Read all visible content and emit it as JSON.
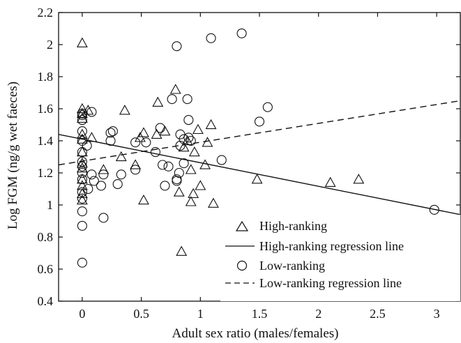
{
  "chart_data": {
    "type": "scatter",
    "xlabel": "Adult sex ratio (males/females)",
    "ylabel": "Log FGM (ng/g wet faeces)",
    "xlim": [
      -0.2,
      3.2
    ],
    "ylim": [
      0.4,
      2.2
    ],
    "xticks": [
      "0",
      "0.5",
      "1",
      "1.5",
      "2",
      "2.5",
      "3"
    ],
    "xtick_values": [
      0,
      0.5,
      1,
      1.5,
      2,
      2.5,
      3
    ],
    "yticks": [
      "0.4",
      "0.6",
      "0.8",
      "1",
      "1.2",
      "1.4",
      "1.6",
      "1.8",
      "2",
      "2.2"
    ],
    "ytick_values": [
      0.4,
      0.6,
      0.8,
      1.0,
      1.2,
      1.4,
      1.6,
      1.8,
      2.0,
      2.2
    ],
    "legend_position": "bottom-right",
    "series": [
      {
        "name": "High-ranking",
        "marker": "triangle",
        "points": [
          [
            0,
            2.01
          ],
          [
            0,
            1.6
          ],
          [
            0,
            1.57
          ],
          [
            0,
            1.54
          ],
          [
            0,
            1.44
          ],
          [
            0,
            1.41
          ],
          [
            0,
            1.33
          ],
          [
            0,
            1.26
          ],
          [
            0,
            1.23
          ],
          [
            0,
            1.16
          ],
          [
            0,
            1.12
          ],
          [
            0,
            1.07
          ],
          [
            0,
            1.03
          ],
          [
            0.05,
            1.59
          ],
          [
            0.08,
            1.42
          ],
          [
            0.18,
            1.22
          ],
          [
            0.33,
            1.3
          ],
          [
            0.36,
            1.59
          ],
          [
            0.45,
            1.25
          ],
          [
            0.49,
            1.42
          ],
          [
            0.52,
            1.45
          ],
          [
            0.52,
            1.03
          ],
          [
            0.63,
            1.44
          ],
          [
            0.64,
            1.64
          ],
          [
            0.7,
            1.46
          ],
          [
            0.79,
            1.72
          ],
          [
            0.82,
            1.08
          ],
          [
            0.84,
            0.71
          ],
          [
            0.86,
            1.36
          ],
          [
            0.89,
            1.4
          ],
          [
            0.92,
            1.22
          ],
          [
            0.94,
            1.07
          ],
          [
            0.92,
            1.02
          ],
          [
            0.95,
            1.33
          ],
          [
            0.98,
            1.47
          ],
          [
            1.0,
            1.12
          ],
          [
            1.04,
            1.25
          ],
          [
            1.06,
            1.39
          ],
          [
            1.09,
            1.5
          ],
          [
            1.11,
            1.01
          ],
          [
            1.48,
            1.16
          ],
          [
            2.1,
            1.14
          ],
          [
            2.34,
            1.16
          ]
        ]
      },
      {
        "name": "High-ranking regression line",
        "line_style": "solid",
        "line": [
          [
            -0.2,
            1.44
          ],
          [
            3.2,
            0.94
          ]
        ]
      },
      {
        "name": "Low-ranking",
        "marker": "circle",
        "points": [
          [
            0,
            1.57
          ],
          [
            0,
            1.56
          ],
          [
            0,
            1.53
          ],
          [
            0,
            1.46
          ],
          [
            0,
            1.4
          ],
          [
            0,
            1.33
          ],
          [
            0,
            1.27
          ],
          [
            0,
            1.24
          ],
          [
            0,
            1.2
          ],
          [
            0,
            1.16
          ],
          [
            0,
            1.08
          ],
          [
            0,
            1.04
          ],
          [
            0,
            0.96
          ],
          [
            0,
            0.87
          ],
          [
            0,
            0.64
          ],
          [
            0.04,
            1.37
          ],
          [
            0.05,
            1.1
          ],
          [
            0.08,
            1.58
          ],
          [
            0.08,
            1.19
          ],
          [
            0.1,
            1.15
          ],
          [
            0.16,
            1.12
          ],
          [
            0.18,
            0.92
          ],
          [
            0.18,
            1.19
          ],
          [
            0.24,
            1.45
          ],
          [
            0.26,
            1.46
          ],
          [
            0.24,
            1.4
          ],
          [
            0.3,
            1.13
          ],
          [
            0.33,
            1.19
          ],
          [
            0.45,
            1.22
          ],
          [
            0.45,
            1.39
          ],
          [
            0.54,
            1.39
          ],
          [
            0.62,
            1.33
          ],
          [
            0.66,
            1.48
          ],
          [
            0.68,
            1.25
          ],
          [
            0.7,
            1.12
          ],
          [
            0.73,
            1.24
          ],
          [
            0.76,
            1.66
          ],
          [
            0.8,
            1.99
          ],
          [
            0.8,
            1.15
          ],
          [
            0.8,
            1.16
          ],
          [
            0.82,
            1.2
          ],
          [
            0.83,
            1.37
          ],
          [
            0.83,
            1.44
          ],
          [
            0.86,
            1.41
          ],
          [
            0.86,
            1.26
          ],
          [
            0.89,
            1.66
          ],
          [
            0.9,
            1.53
          ],
          [
            0.9,
            1.42
          ],
          [
            0.92,
            1.4
          ],
          [
            1.09,
            2.04
          ],
          [
            1.18,
            1.28
          ],
          [
            1.35,
            2.07
          ],
          [
            1.5,
            1.52
          ],
          [
            1.57,
            1.61
          ],
          [
            2.98,
            0.97
          ]
        ]
      },
      {
        "name": "Low-ranking regression line",
        "line_style": "dashed",
        "line": [
          [
            -0.2,
            1.25
          ],
          [
            3.2,
            1.65
          ]
        ]
      }
    ]
  }
}
